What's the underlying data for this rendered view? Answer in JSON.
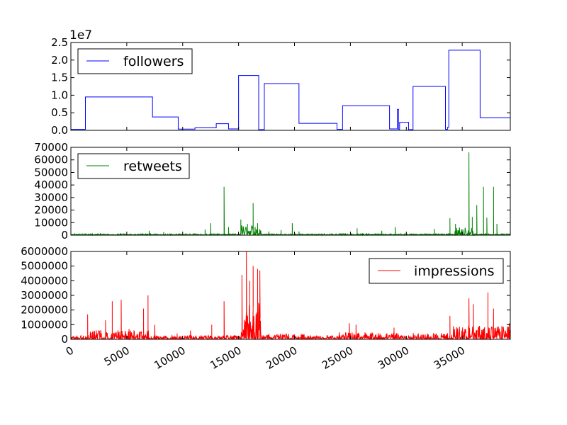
{
  "chart_data": [
    {
      "type": "line",
      "series": [
        {
          "name": "followers",
          "color": "#0000ff",
          "points": [
            [
              0,
              300000
            ],
            [
              1300,
              300000
            ],
            [
              1300,
              9500000
            ],
            [
              7300,
              9500000
            ],
            [
              7300,
              3800000
            ],
            [
              9600,
              3800000
            ],
            [
              9600,
              350000
            ],
            [
              11100,
              350000
            ],
            [
              11100,
              700000
            ],
            [
              13000,
              700000
            ],
            [
              13000,
              1900000
            ],
            [
              14100,
              1900000
            ],
            [
              14100,
              400000
            ],
            [
              15000,
              400000
            ],
            [
              15000,
              15600000
            ],
            [
              16800,
              15600000
            ],
            [
              16800,
              200000
            ],
            [
              17300,
              200000
            ],
            [
              17300,
              13300000
            ],
            [
              20400,
              13300000
            ],
            [
              20400,
              2000000
            ],
            [
              23800,
              2000000
            ],
            [
              23800,
              300000
            ],
            [
              24300,
              300000
            ],
            [
              24300,
              7000000
            ],
            [
              28500,
              7000000
            ],
            [
              28500,
              400000
            ],
            [
              29200,
              400000
            ],
            [
              29200,
              6000000
            ],
            [
              29300,
              6000000
            ],
            [
              29300,
              300000
            ],
            [
              29400,
              300000
            ],
            [
              29400,
              2300000
            ],
            [
              30200,
              2300000
            ],
            [
              30200,
              200000
            ],
            [
              30600,
              200000
            ],
            [
              30600,
              12500000
            ],
            [
              33500,
              12500000
            ],
            [
              33500,
              300000
            ],
            [
              33700,
              300000
            ],
            [
              33700,
              900000
            ],
            [
              33800,
              900000
            ],
            [
              33800,
              22800000
            ],
            [
              36600,
              22800000
            ],
            [
              36600,
              3600000
            ],
            [
              39300,
              3600000
            ]
          ]
        }
      ],
      "yticks": [
        "0.0",
        "0.5",
        "1.0",
        "1.5",
        "2.0",
        "2.5"
      ],
      "ylim": [
        0,
        25000000
      ],
      "xlim": [
        0,
        39300
      ],
      "y_offset_label": "1e7",
      "legend_position": "upper-left"
    },
    {
      "type": "line",
      "series": [
        {
          "name": "retweets",
          "color": "#008000",
          "baseline": 300,
          "noise_amplitude": 800,
          "dense_segments": [
            {
              "x_range": [
                15200,
                17000
              ],
              "amplitude": 8000
            },
            {
              "x_range": [
                34300,
                36000
              ],
              "amplitude": 6000
            }
          ],
          "spikes": [
            [
              7000,
              3500
            ],
            [
              8300,
              2500
            ],
            [
              12000,
              4500
            ],
            [
              12500,
              9500
            ],
            [
              13700,
              38500
            ],
            [
              14100,
              6500
            ],
            [
              15200,
              12500
            ],
            [
              15800,
              9000
            ],
            [
              16300,
              25500
            ],
            [
              16700,
              9500
            ],
            [
              17700,
              3000
            ],
            [
              18800,
              4000
            ],
            [
              19800,
              9500
            ],
            [
              20400,
              3000
            ],
            [
              25600,
              5500
            ],
            [
              27800,
              3500
            ],
            [
              29000,
              6500
            ],
            [
              32500,
              5000
            ],
            [
              33900,
              13500
            ],
            [
              34400,
              9000
            ],
            [
              35600,
              66000
            ],
            [
              35900,
              14500
            ],
            [
              36300,
              24000
            ],
            [
              36900,
              38500
            ],
            [
              37200,
              14000
            ],
            [
              37800,
              38500
            ],
            [
              38100,
              9000
            ],
            [
              39300,
              20500
            ]
          ]
        }
      ],
      "yticks": [
        "0",
        "10000",
        "20000",
        "30000",
        "40000",
        "50000",
        "60000",
        "70000"
      ],
      "ylim": [
        0,
        70000
      ],
      "xlim": [
        0,
        39300
      ],
      "legend_position": "upper-left"
    },
    {
      "type": "line",
      "series": [
        {
          "name": "impressions",
          "color": "#ff0000",
          "baseline": 20000,
          "noise_amplitude": 250000,
          "dense_segments": [
            {
              "x_range": [
                1500,
                7000
              ],
              "amplitude": 600000
            },
            {
              "x_range": [
                15200,
                17000
              ],
              "amplitude": 2500000
            },
            {
              "x_range": [
                17500,
                21000
              ],
              "amplitude": 350000
            },
            {
              "x_range": [
                24000,
                29500
              ],
              "amplitude": 450000
            },
            {
              "x_range": [
                30500,
                34000
              ],
              "amplitude": 400000
            },
            {
              "x_range": [
                34000,
                39300
              ],
              "amplitude": 900000
            }
          ],
          "spikes": [
            [
              1500,
              1700000
            ],
            [
              3100,
              1300000
            ],
            [
              3700,
              2600000
            ],
            [
              4500,
              2700000
            ],
            [
              5200,
              700000
            ],
            [
              6500,
              2100000
            ],
            [
              6900,
              3000000
            ],
            [
              7500,
              1000000
            ],
            [
              9500,
              400000
            ],
            [
              10700,
              600000
            ],
            [
              12600,
              1000000
            ],
            [
              13700,
              2600000
            ],
            [
              15300,
              4400000
            ],
            [
              15700,
              6000000
            ],
            [
              16000,
              4000000
            ],
            [
              16300,
              5000000
            ],
            [
              16700,
              4800000
            ],
            [
              16900,
              4700000
            ],
            [
              24900,
              1100000
            ],
            [
              25500,
              1000000
            ],
            [
              28900,
              800000
            ],
            [
              33900,
              1600000
            ],
            [
              35600,
              2800000
            ],
            [
              36000,
              2400000
            ],
            [
              36300,
              600000
            ],
            [
              37300,
              3200000
            ],
            [
              37800,
              2100000
            ],
            [
              39200,
              1100000
            ]
          ]
        }
      ],
      "yticks": [
        "0",
        "1000000",
        "2000000",
        "3000000",
        "4000000",
        "5000000",
        "6000000"
      ],
      "ylim": [
        0,
        6000000
      ],
      "xlim": [
        0,
        39300
      ],
      "xticks": [
        "0",
        "5000",
        "10000",
        "15000",
        "20000",
        "25000",
        "30000",
        "35000"
      ],
      "legend_position": "upper-right"
    }
  ]
}
